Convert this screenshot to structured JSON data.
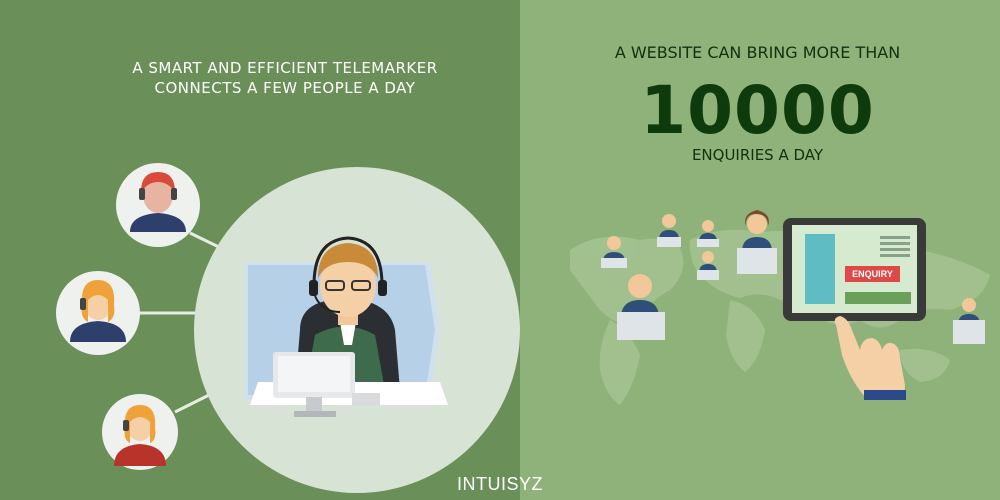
{
  "left_panel": {
    "headline_line1": "A SMART AND EFFICIENT TELEMARKER",
    "headline_line2": "CONNECTS A FEW PEOPLE A DAY"
  },
  "right_panel": {
    "headline": "A WEBSITE CAN BRING MORE THAN",
    "big_number": "10000",
    "subline": "ENQUIRIES A DAY",
    "tablet_button": "ENQUIRY"
  },
  "footer": {
    "brand": "INTUISYZ"
  },
  "colors": {
    "left_bg": "#6a8f58",
    "right_bg": "#8fb27a",
    "number": "#0f3a0c",
    "enquiry_button": "#e04848"
  },
  "icons": [
    "operator-avatar-icon",
    "telemarketer-illustration",
    "world-map",
    "user-at-laptop-icon",
    "tablet-icon",
    "pointing-hand-icon"
  ]
}
